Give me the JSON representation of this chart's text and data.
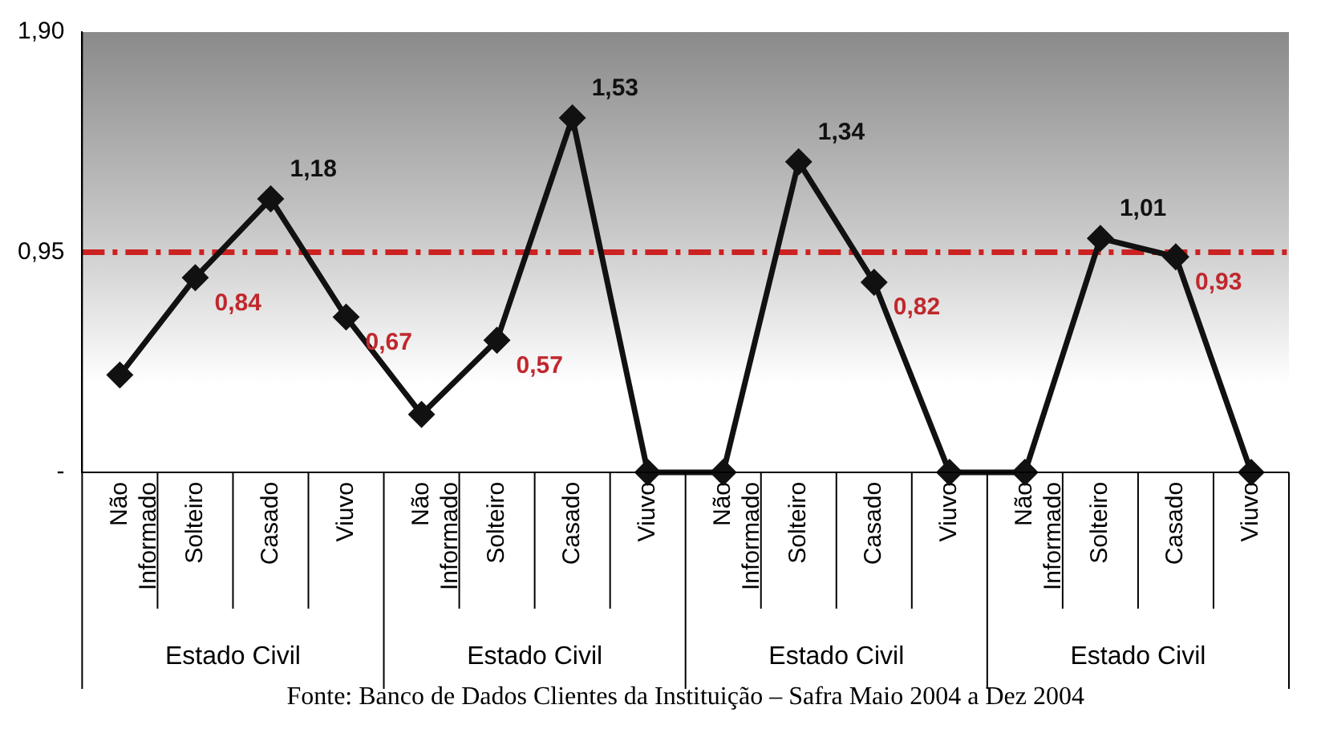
{
  "chart_data": {
    "type": "line",
    "categories": [
      "Não Informado",
      "Solteiro",
      "Casado",
      "Viuvo",
      "Não Informado",
      "Solteiro",
      "Casado",
      "Viuvo",
      "Não Informado",
      "Solteiro",
      "Casado",
      "Viuvo",
      "Não Informado",
      "Solteiro",
      "Casado",
      "Viuvo"
    ],
    "series": [
      {
        "color": "#111111",
        "values": [
          0.42,
          0.84,
          1.18,
          0.67,
          0.25,
          0.57,
          1.53,
          0,
          0,
          1.34,
          0.82,
          0,
          0,
          1.01,
          0.93,
          0
        ],
        "value_labels": [
          null,
          "0,84",
          "1,18",
          "0,67",
          null,
          "0,57",
          "1,53",
          null,
          null,
          "1,34",
          "0,82",
          null,
          null,
          "1,01",
          "0,93",
          null
        ]
      }
    ],
    "ylim": [
      0,
      1.9
    ],
    "yticks": [
      {
        "value": 0,
        "label": "-"
      },
      {
        "value": 0.95,
        "label": "0,95"
      },
      {
        "value": 1.9,
        "label": "1,90"
      }
    ],
    "ref_lines": [
      {
        "axis": "y",
        "value": 0.95,
        "color": "#cc2222",
        "line_style": "dashdot"
      }
    ],
    "marker": "diamond",
    "legend": false,
    "annotations": [
      "Estado Civil",
      "Estado Civil",
      "Estado Civil",
      "Estado Civil",
      "Fonte: Banco de Dados Clientes da Instituição – Safra Maio 2004 a Dez 2004"
    ]
  }
}
